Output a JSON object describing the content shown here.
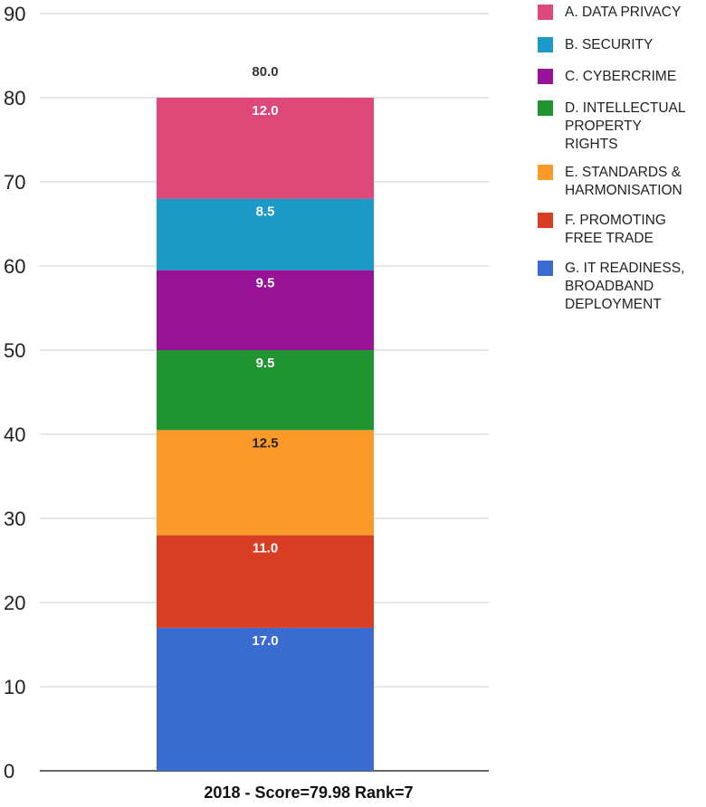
{
  "chart_data": {
    "type": "bar",
    "stacked": true,
    "categories": [
      "2018 - Score=79.98 Rank=7"
    ],
    "series": [
      {
        "name": "G. IT READINESS, BROADBAND DEPLOYMENT",
        "values": [
          17.0
        ],
        "color": "#3a6bd1"
      },
      {
        "name": "F. PROMOTING FREE TRADE",
        "values": [
          11.0
        ],
        "color": "#d83e22"
      },
      {
        "name": "E. STANDARDS & HARMONISATION",
        "values": [
          12.5
        ],
        "color": "#fb9a28"
      },
      {
        "name": "D. INTELLECTUAL PROPERTY RIGHTS",
        "values": [
          9.5
        ],
        "color": "#1f9431"
      },
      {
        "name": "C. CYBERCRIME",
        "values": [
          9.5
        ],
        "color": "#981298"
      },
      {
        "name": "B. SECURITY",
        "values": [
          8.5
        ],
        "color": "#1b9ac7"
      },
      {
        "name": "A. DATA PRIVACY",
        "values": [
          12.0
        ],
        "color": "#de4979"
      }
    ],
    "segment_labels": [
      "17.0",
      "11.0",
      "12.5",
      "9.5",
      "9.5",
      "8.5",
      "12.0"
    ],
    "segment_label_colors": [
      "#ffffff",
      "#ffffff",
      "#222222",
      "#ffffff",
      "#ffffff",
      "#ffffff",
      "#ffffff"
    ],
    "total_label": "80.0",
    "ylim": [
      0,
      90
    ],
    "yticks": [
      "0",
      "10",
      "20",
      "30",
      "40",
      "50",
      "60",
      "70",
      "80",
      "90"
    ],
    "grid": true,
    "legend_position": "right",
    "title": "",
    "xlabel": "",
    "ylabel": ""
  },
  "legend": [
    {
      "label": "A. DATA PRIVACY",
      "color": "#de4979"
    },
    {
      "label": "B. SECURITY",
      "color": "#1b9ac7"
    },
    {
      "label": "C. CYBERCRIME",
      "color": "#981298"
    },
    {
      "label": "D. INTELLECTUAL\nPROPERTY\nRIGHTS",
      "color": "#1f9431"
    },
    {
      "label": "E. STANDARDS &\nHARMONISATION",
      "color": "#fb9a28"
    },
    {
      "label": "F. PROMOTING\nFREE TRADE",
      "color": "#d83e22"
    },
    {
      "label": "G. IT READINESS,\nBROADBAND\nDEPLOYMENT",
      "color": "#3a6bd1"
    }
  ]
}
